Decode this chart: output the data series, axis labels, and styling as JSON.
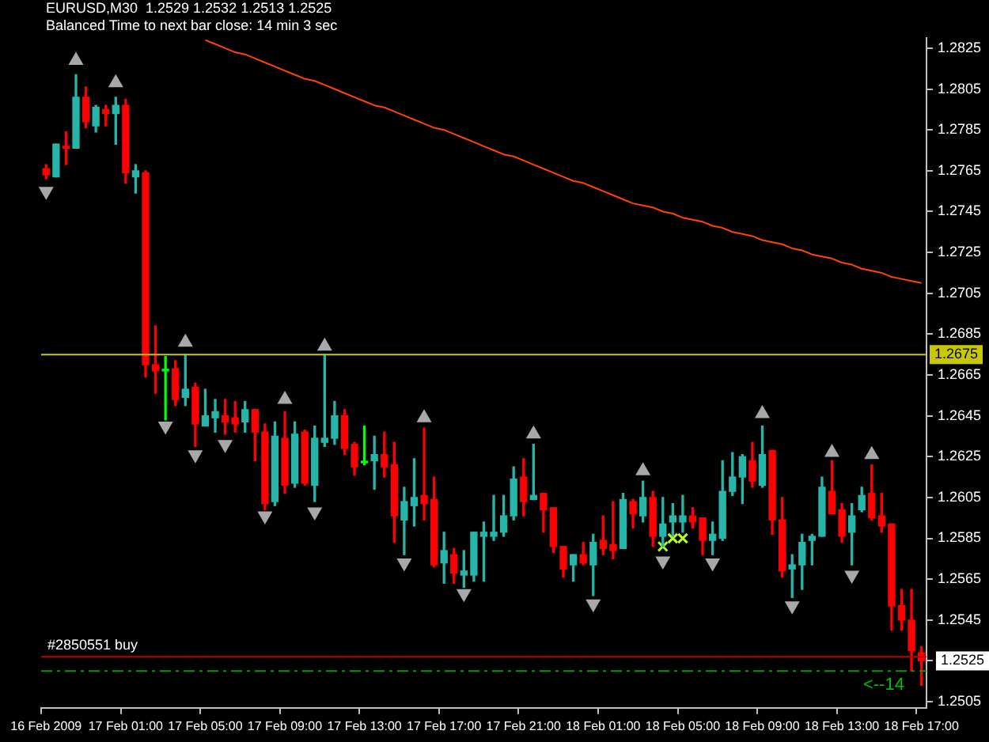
{
  "chart_data": {
    "type": "candlestick",
    "title": "EURUSD,M30  1.2529 1.2532 1.2513 1.2525",
    "subtitle": "Balanced Time to next bar close: 14 min 3 sec",
    "categories": [
      "16 Feb 2009",
      null,
      null,
      null,
      null,
      null,
      null,
      null,
      "17 Feb 01:00",
      null,
      null,
      null,
      null,
      null,
      null,
      null,
      "17 Feb 05:00",
      null,
      null,
      null,
      null,
      null,
      null,
      null,
      "17 Feb 09:00",
      null,
      null,
      null,
      null,
      null,
      null,
      null,
      "17 Feb 13:00",
      null,
      null,
      null,
      null,
      null,
      null,
      null,
      "17 Feb 17:00",
      null,
      null,
      null,
      null,
      null,
      null,
      null,
      "17 Feb 21:00",
      null,
      null,
      null,
      null,
      null,
      null,
      null,
      "18 Feb 01:00",
      null,
      null,
      null,
      null,
      null,
      null,
      null,
      "18 Feb 05:00",
      null,
      null,
      null,
      null,
      null,
      null,
      null,
      "18 Feb 09:00",
      null,
      null,
      null,
      null,
      null,
      null,
      null,
      "18 Feb 13:00",
      null,
      null,
      null,
      null,
      null,
      null,
      null,
      "18 Feb 17:00"
    ],
    "ohlc": [
      [
        1.2766,
        1.2768,
        1.2761,
        1.2763
      ],
      [
        1.2762,
        1.2778,
        1.2762,
        1.2778
      ],
      [
        1.2777,
        1.2784,
        1.2768,
        1.2776
      ],
      [
        1.2776,
        1.2812,
        1.2776,
        1.2801
      ],
      [
        1.2801,
        1.2806,
        1.2786,
        1.2789
      ],
      [
        1.2787,
        1.2797,
        1.2784,
        1.2796
      ],
      [
        1.2795,
        1.2797,
        1.2787,
        1.2793
      ],
      [
        1.2793,
        1.2801,
        1.2778,
        1.2797
      ],
      [
        1.2797,
        1.28,
        1.2759,
        1.2764
      ],
      [
        1.2762,
        1.2768,
        1.2754,
        1.2765
      ],
      [
        1.2764,
        1.2765,
        1.2664,
        1.267
      ],
      [
        1.267,
        1.2689,
        1.2656,
        1.2667
      ],
      [
        1.2667,
        1.2674,
        1.2643,
        1.2667
      ],
      [
        1.2668,
        1.2672,
        1.265,
        1.2653
      ],
      [
        1.2654,
        1.2675,
        1.265,
        1.2658
      ],
      [
        1.2659,
        1.2661,
        1.263,
        1.2641
      ],
      [
        1.264,
        1.2658,
        1.264,
        1.2645
      ],
      [
        1.2644,
        1.2653,
        1.2637,
        1.2647
      ],
      [
        1.2645,
        1.2653,
        1.2636,
        1.2642
      ],
      [
        1.2644,
        1.2652,
        1.2637,
        1.2641
      ],
      [
        1.2642,
        1.2652,
        1.2637,
        1.2648
      ],
      [
        1.2648,
        1.2648,
        1.2623,
        1.2637
      ],
      [
        1.2637,
        1.2641,
        1.2599,
        1.2602
      ],
      [
        1.2603,
        1.2642,
        1.2601,
        1.2635
      ],
      [
        1.2634,
        1.2647,
        1.2607,
        1.2611
      ],
      [
        1.2612,
        1.2642,
        1.261,
        1.2636
      ],
      [
        1.2637,
        1.2638,
        1.2611,
        1.2612
      ],
      [
        1.2611,
        1.264,
        1.2603,
        1.2634
      ],
      [
        1.2632,
        1.2675,
        1.263,
        1.2634
      ],
      [
        1.2634,
        1.2652,
        1.2631,
        1.2645
      ],
      [
        1.2645,
        1.2648,
        1.2626,
        1.2629
      ],
      [
        1.2631,
        1.2632,
        1.2616,
        1.262
      ],
      [
        1.2622,
        1.264,
        1.2621,
        1.2622
      ],
      [
        1.2623,
        1.2635,
        1.2609,
        1.2626
      ],
      [
        1.2626,
        1.2637,
        1.2615,
        1.262
      ],
      [
        1.2621,
        1.2632,
        1.2583,
        1.2596
      ],
      [
        1.2594,
        1.261,
        1.2577,
        1.2603
      ],
      [
        1.2601,
        1.2624,
        1.2591,
        1.2605
      ],
      [
        1.2606,
        1.2639,
        1.2594,
        1.2602
      ],
      [
        1.2604,
        1.2615,
        1.2571,
        1.2572
      ],
      [
        1.2573,
        1.2588,
        1.2563,
        1.2579
      ],
      [
        1.2577,
        1.258,
        1.2563,
        1.2568
      ],
      [
        1.2567,
        1.2579,
        1.2561,
        1.2569
      ],
      [
        1.2567,
        1.2588,
        1.2564,
        1.2588
      ],
      [
        1.2586,
        1.2593,
        1.2564,
        1.2588
      ],
      [
        1.2586,
        1.2606,
        1.2584,
        1.2588
      ],
      [
        1.2588,
        1.2606,
        1.2586,
        1.2596
      ],
      [
        1.2596,
        1.262,
        1.2594,
        1.2614
      ],
      [
        1.2615,
        1.2624,
        1.2596,
        1.2603
      ],
      [
        1.2604,
        1.2631,
        1.2604,
        1.2606
      ],
      [
        1.2607,
        1.2607,
        1.2588,
        1.2599
      ],
      [
        1.26,
        1.26,
        1.2578,
        1.2581
      ],
      [
        1.2581,
        1.2581,
        1.2566,
        1.257
      ],
      [
        1.2572,
        1.2577,
        1.2564,
        1.2577
      ],
      [
        1.2577,
        1.2583,
        1.2572,
        1.2573
      ],
      [
        1.2572,
        1.2587,
        1.2557,
        1.2583
      ],
      [
        1.2584,
        1.2596,
        1.2577,
        1.258
      ],
      [
        1.2582,
        1.2603,
        1.2575,
        1.2579
      ],
      [
        1.258,
        1.2607,
        1.258,
        1.2604
      ],
      [
        1.2603,
        1.2604,
        1.259,
        1.2597
      ],
      [
        1.2596,
        1.2613,
        1.2593,
        1.2605
      ],
      [
        1.2605,
        1.2608,
        1.2581,
        1.2586
      ],
      [
        1.2586,
        1.2605,
        1.2581,
        1.2592
      ],
      [
        1.2593,
        1.2602,
        1.2586,
        1.2596
      ],
      [
        1.2593,
        1.2606,
        1.2588,
        1.2596
      ],
      [
        1.2596,
        1.26,
        1.259,
        1.2593
      ],
      [
        1.2595,
        1.2595,
        1.2577,
        1.2584
      ],
      [
        1.2584,
        1.2593,
        1.2577,
        1.2587
      ],
      [
        1.2585,
        1.2623,
        1.2584,
        1.2608
      ],
      [
        1.2608,
        1.2627,
        1.2606,
        1.2615
      ],
      [
        1.2615,
        1.2626,
        1.2602,
        1.2625
      ],
      [
        1.2623,
        1.2632,
        1.261,
        1.2613
      ],
      [
        1.2611,
        1.264,
        1.261,
        1.2626
      ],
      [
        1.2628,
        1.2628,
        1.2587,
        1.2594
      ],
      [
        1.2594,
        1.2605,
        1.2566,
        1.2569
      ],
      [
        1.257,
        1.2577,
        1.2556,
        1.2572
      ],
      [
        1.2572,
        1.2587,
        1.256,
        1.2583
      ],
      [
        1.2584,
        1.2587,
        1.2572,
        1.2586
      ],
      [
        1.2586,
        1.2615,
        1.2586,
        1.261
      ],
      [
        1.2608,
        1.2623,
        1.2597,
        1.2597
      ],
      [
        1.2599,
        1.2602,
        1.2583,
        1.2586
      ],
      [
        1.2588,
        1.2602,
        1.2572,
        1.2596
      ],
      [
        1.2599,
        1.261,
        1.2598,
        1.2606
      ],
      [
        1.2607,
        1.2621,
        1.2594,
        1.2595
      ],
      [
        1.2596,
        1.2607,
        1.2588,
        1.2591
      ],
      [
        1.2592,
        1.2592,
        1.254,
        1.2552
      ],
      [
        1.2552,
        1.256,
        1.254,
        1.2545
      ],
      [
        1.2545,
        1.256,
        1.252,
        1.253
      ],
      [
        1.2529,
        1.2532,
        1.2513,
        1.2525
      ]
    ],
    "colors": [
      "#ff0000",
      "#26b5a8",
      "#ff0000",
      "#26b5a8",
      "#ff0000",
      "#26b5a8",
      "#ff0000",
      "#26b5a8",
      "#ff0000",
      "#26b5a8",
      "#ff0000",
      "#ff0000",
      "#00ff00",
      "#ff0000",
      "#26b5a8",
      "#ff0000",
      "#26b5a8",
      "#26b5a8",
      "#ff0000",
      "#ff0000",
      "#26b5a8",
      "#ff0000",
      "#ff0000",
      "#26b5a8",
      "#ff0000",
      "#26b5a8",
      "#ff0000",
      "#26b5a8",
      "#26b5a8",
      "#26b5a8",
      "#ff0000",
      "#ff0000",
      "#00ff00",
      "#26b5a8",
      "#ff0000",
      "#ff0000",
      "#26b5a8",
      "#26b5a8",
      "#ff0000",
      "#ff0000",
      "#26b5a8",
      "#ff0000",
      "#26b5a8",
      "#26b5a8",
      "#26b5a8",
      "#26b5a8",
      "#26b5a8",
      "#26b5a8",
      "#ff0000",
      "#26b5a8",
      "#ff0000",
      "#ff0000",
      "#ff0000",
      "#26b5a8",
      "#ff0000",
      "#26b5a8",
      "#ff0000",
      "#ff0000",
      "#26b5a8",
      "#ff0000",
      "#26b5a8",
      "#ff0000",
      "#26b5a8",
      "#26b5a8",
      "#26b5a8",
      "#ff0000",
      "#ff0000",
      "#26b5a8",
      "#26b5a8",
      "#26b5a8",
      "#26b5a8",
      "#ff0000",
      "#26b5a8",
      "#ff0000",
      "#ff0000",
      "#26b5a8",
      "#26b5a8",
      "#26b5a8",
      "#26b5a8",
      "#ff0000",
      "#ff0000",
      "#26b5a8",
      "#26b5a8",
      "#ff0000",
      "#ff0000",
      "#ff0000",
      "#ff0000",
      "#ff0000",
      "#ff0000"
    ],
    "series": [
      {
        "type": "line",
        "color": "#ff4500",
        "values": [
          null,
          null,
          null,
          null,
          null,
          null,
          null,
          null,
          null,
          null,
          null,
          null,
          null,
          null,
          null,
          null,
          1.2829,
          1.2827,
          1.2825,
          1.2823,
          1.2822,
          1.282,
          1.2818,
          1.2816,
          1.2814,
          1.2812,
          1.281,
          1.2809,
          1.2807,
          1.2805,
          1.2803,
          1.2801,
          1.2799,
          1.2797,
          1.2796,
          1.2794,
          1.2792,
          1.279,
          1.2788,
          1.2786,
          1.2785,
          1.2783,
          1.2781,
          1.2779,
          1.2777,
          1.2775,
          1.2773,
          1.2772,
          1.277,
          1.2768,
          1.2766,
          1.2764,
          1.2762,
          1.276,
          1.2759,
          1.2757,
          1.2755,
          1.2753,
          1.2751,
          1.2749,
          1.2748,
          1.2747,
          1.2745,
          1.2744,
          1.2742,
          1.2741,
          1.274,
          1.2738,
          1.2737,
          1.2735,
          1.2734,
          1.2733,
          1.2731,
          1.273,
          1.2729,
          1.2727,
          1.2726,
          1.2724,
          1.2723,
          1.2722,
          1.272,
          1.2719,
          1.2717,
          1.2716,
          1.2715,
          1.2713,
          1.2712,
          1.2711,
          1.271
        ]
      },
      {
        "type": "scatter",
        "marker": "triangle",
        "color": "#a8a8a8",
        "values": [
          null,
          null,
          null,
          1.2819,
          null,
          null,
          null,
          1.2808,
          null,
          null,
          null,
          null,
          null,
          null,
          1.2681,
          null,
          null,
          null,
          null,
          null,
          null,
          null,
          null,
          null,
          1.2653,
          null,
          null,
          null,
          1.2679,
          null,
          null,
          null,
          null,
          null,
          null,
          null,
          null,
          null,
          1.2644,
          null,
          null,
          null,
          null,
          null,
          null,
          null,
          null,
          null,
          null,
          1.2636,
          null,
          null,
          null,
          null,
          null,
          null,
          null,
          null,
          null,
          null,
          1.2618,
          null,
          null,
          null,
          null,
          null,
          null,
          null,
          null,
          null,
          null,
          null,
          1.2646,
          null,
          null,
          null,
          null,
          null,
          null,
          1.2627,
          null,
          null,
          null,
          1.2626,
          null,
          null,
          null,
          null,
          null
        ]
      },
      {
        "type": "scatter",
        "marker": "triangle",
        "color": "#a8a8a8",
        "values": [
          1.2755,
          null,
          null,
          null,
          null,
          null,
          null,
          null,
          null,
          null,
          null,
          null,
          1.264,
          null,
          null,
          1.2626,
          null,
          null,
          1.2631,
          null,
          null,
          null,
          1.2596,
          null,
          null,
          null,
          null,
          1.2598,
          null,
          null,
          null,
          null,
          null,
          null,
          null,
          null,
          1.2573,
          null,
          null,
          null,
          null,
          null,
          1.2558,
          null,
          null,
          null,
          null,
          null,
          null,
          null,
          null,
          null,
          null,
          null,
          null,
          1.2553,
          null,
          null,
          null,
          null,
          null,
          null,
          1.2574,
          null,
          null,
          null,
          null,
          1.2573,
          null,
          null,
          null,
          null,
          null,
          null,
          null,
          1.2552,
          null,
          null,
          null,
          null,
          null,
          1.2567,
          null,
          null,
          null,
          null,
          null,
          null,
          null
        ]
      },
      {
        "type": "scatter",
        "marker": "cross",
        "color": "#b4ff1e",
        "values": [
          null,
          null,
          null,
          null,
          null,
          null,
          null,
          null,
          null,
          null,
          null,
          null,
          null,
          null,
          null,
          null,
          null,
          null,
          null,
          null,
          null,
          null,
          null,
          null,
          null,
          null,
          null,
          null,
          null,
          null,
          null,
          null,
          null,
          null,
          null,
          null,
          null,
          null,
          null,
          null,
          null,
          null,
          null,
          null,
          null,
          null,
          null,
          null,
          null,
          null,
          null,
          null,
          null,
          null,
          null,
          null,
          null,
          null,
          null,
          null,
          null,
          null,
          1.2581,
          1.2585,
          1.2585,
          null,
          null,
          null,
          null,
          null,
          null,
          null,
          null,
          null,
          null,
          null,
          null,
          null,
          null,
          null,
          null,
          null,
          null,
          null,
          null,
          null,
          null,
          null,
          null
        ]
      }
    ],
    "ylim": [
      1.2502,
      1.283
    ],
    "yticks": [
      1.2505,
      {
        "value": 1.2525,
        "label": "1.2525"
      },
      1.2545,
      1.2565,
      1.2585,
      1.2605,
      1.2625,
      1.2645,
      1.2665,
      1.2685,
      1.2705,
      1.2725,
      1.2745,
      1.2765,
      1.2785,
      1.2805,
      1.2825
    ],
    "ref_lines": [
      {
        "axis": "y",
        "value": 1.2675,
        "label": "1.2675",
        "color": "#c8c800"
      },
      {
        "axis": "y",
        "value": 1.2527,
        "label": "#2850551 buy",
        "color": "#c00000"
      },
      {
        "axis": "y",
        "value": 1.252,
        "color": "#00a000",
        "line_style": "dashed"
      }
    ],
    "annotations": [
      {
        "text": "<--14",
        "y": 1.252
      }
    ],
    "grid": false,
    "legend": false
  }
}
